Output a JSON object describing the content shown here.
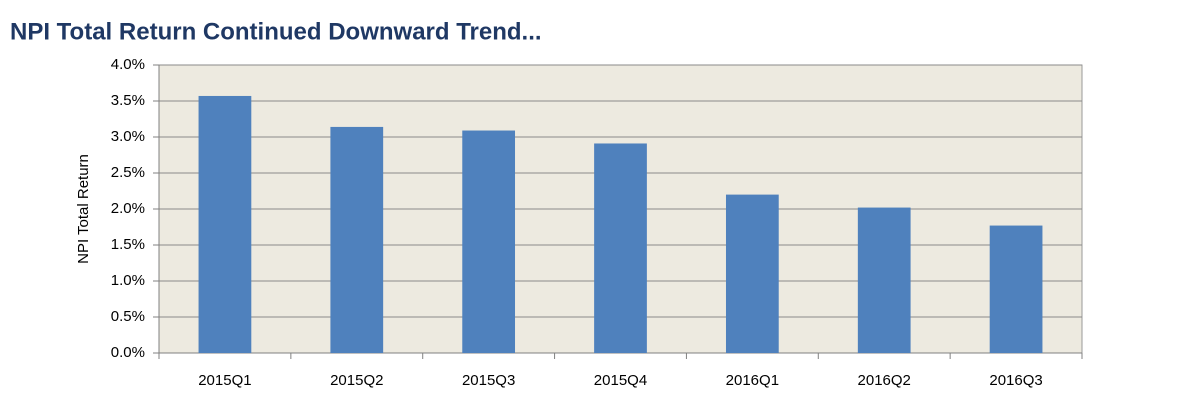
{
  "chart_data": {
    "type": "bar",
    "title": "NPI Total Return Continued Downward Trend...",
    "y_label": "NPI Total Return",
    "categories": [
      "2015Q1",
      "2015Q2",
      "2015Q3",
      "2015Q4",
      "2016Q1",
      "2016Q2",
      "2016Q3"
    ],
    "values": [
      3.57,
      3.14,
      3.09,
      2.91,
      2.2,
      2.02,
      1.77
    ],
    "color": "#4f81bd",
    "ylim": [
      0,
      4
    ],
    "yticks": [
      {
        "value": 0,
        "label": "0.0%"
      },
      {
        "value": 0.5,
        "label": "0.5%"
      },
      {
        "value": 1,
        "label": "1.0%"
      },
      {
        "value": 1.5,
        "label": "1.5%"
      },
      {
        "value": 2,
        "label": "2.0%"
      },
      {
        "value": 2.5,
        "label": "2.5%"
      },
      {
        "value": 3,
        "label": "3.0%"
      },
      {
        "value": 3.5,
        "label": "3.5%"
      },
      {
        "value": 4,
        "label": "4.0%"
      }
    ],
    "grid": true
  }
}
